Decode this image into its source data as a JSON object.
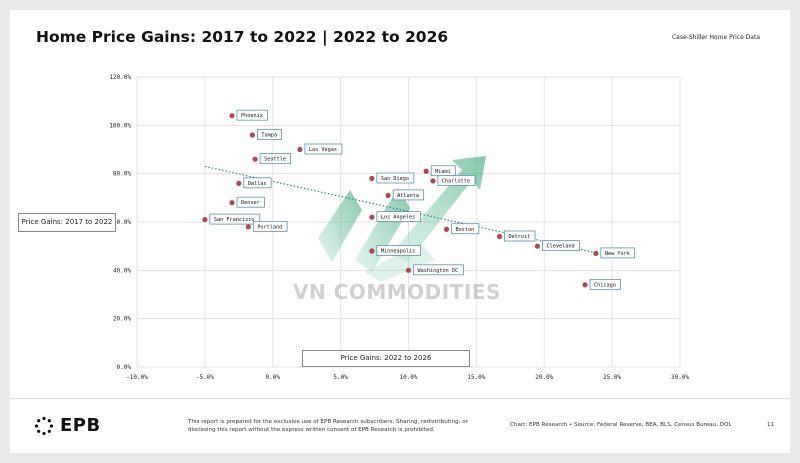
{
  "header": {
    "title": "Home Price Gains: 2017 to 2022 | 2022 to 2026",
    "source_label": "Case-Shiller Home Price Data"
  },
  "axes": {
    "x_box_label": "Price Gains: 2022 to 2026",
    "y_box_label": "Price Gains: 2017 to 2022"
  },
  "watermark": {
    "text": "VN COMMODITIES"
  },
  "footer": {
    "logo_text": "EPB",
    "disclaimer": "This report is prepared for the exclusive use of EPB Research subscribers. Sharing, redistributing, or disclosing this report without the express written consent of EPB Research is prohibited.",
    "source": "Chart: EPB Research  •  Source: Federal Reserve, BEA, BLS, Census Bureau, DOL",
    "page_number": "11"
  },
  "colors": {
    "point": "#a8484f",
    "trend": "#2e8b7a",
    "label_border": "#4a7fa8",
    "grid": "#e3e3e3"
  },
  "chart_data": {
    "type": "scatter",
    "title": "Home Price Gains: 2017 to 2022 | 2022 to 2026",
    "xlabel": "Price Gains: 2022 to 2026",
    "ylabel": "Price Gains: 2017 to 2022",
    "xlim": [
      -10,
      30
    ],
    "ylim": [
      0,
      120
    ],
    "x_ticks": [
      -10,
      -5,
      0,
      5,
      10,
      15,
      20,
      25,
      30
    ],
    "y_ticks": [
      0,
      20,
      40,
      60,
      80,
      100,
      120
    ],
    "x_tick_labels": [
      "-10.0%",
      "-5.0%",
      "0.0%",
      "5.0%",
      "10.0%",
      "15.0%",
      "20.0%",
      "25.0%",
      "30.0%"
    ],
    "y_tick_labels": [
      "0.0%",
      "20.0%",
      "40.0%",
      "60.0%",
      "80.0%",
      "100.0%",
      "120.0%"
    ],
    "grid": true,
    "points": [
      {
        "label": "Phoenix",
        "x": -3.0,
        "y": 104
      },
      {
        "label": "Tampa",
        "x": -1.5,
        "y": 96
      },
      {
        "label": "Las Vegas",
        "x": 2.0,
        "y": 90
      },
      {
        "label": "Seattle",
        "x": -1.3,
        "y": 86
      },
      {
        "label": "Dallas",
        "x": -2.5,
        "y": 76
      },
      {
        "label": "Denver",
        "x": -3.0,
        "y": 68
      },
      {
        "label": "San Francisco",
        "x": -5.0,
        "y": 61
      },
      {
        "label": "Portland",
        "x": -1.8,
        "y": 58
      },
      {
        "label": "San Diego",
        "x": 7.3,
        "y": 78
      },
      {
        "label": "Miami",
        "x": 11.3,
        "y": 81
      },
      {
        "label": "Charlotte",
        "x": 11.8,
        "y": 77
      },
      {
        "label": "Atlanta",
        "x": 8.5,
        "y": 71
      },
      {
        "label": "Los Angeles",
        "x": 7.3,
        "y": 62
      },
      {
        "label": "Boston",
        "x": 12.8,
        "y": 57
      },
      {
        "label": "Detroit",
        "x": 16.7,
        "y": 54
      },
      {
        "label": "Cleveland",
        "x": 19.5,
        "y": 50
      },
      {
        "label": "New York",
        "x": 23.8,
        "y": 47
      },
      {
        "label": "Minneapolis",
        "x": 7.3,
        "y": 48
      },
      {
        "label": "Washington DC",
        "x": 10.0,
        "y": 40
      },
      {
        "label": "Chicago",
        "x": 23.0,
        "y": 34
      }
    ],
    "trendline": {
      "x": [
        -5,
        24
      ],
      "y": [
        83,
        47
      ]
    }
  }
}
